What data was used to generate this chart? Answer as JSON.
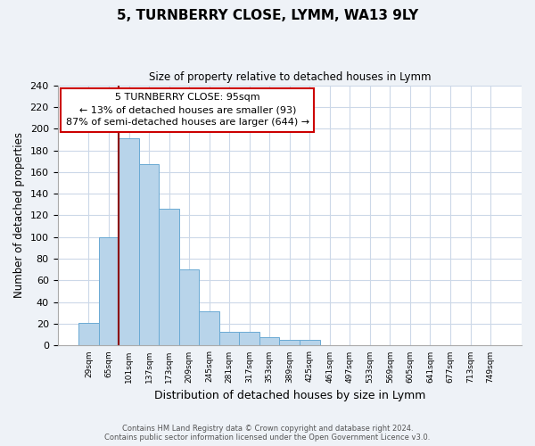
{
  "title": "5, TURNBERRY CLOSE, LYMM, WA13 9LY",
  "subtitle": "Size of property relative to detached houses in Lymm",
  "xlabel": "Distribution of detached houses by size in Lymm",
  "ylabel": "Number of detached properties",
  "bin_labels": [
    "29sqm",
    "65sqm",
    "101sqm",
    "137sqm",
    "173sqm",
    "209sqm",
    "245sqm",
    "281sqm",
    "317sqm",
    "353sqm",
    "389sqm",
    "425sqm",
    "461sqm",
    "497sqm",
    "533sqm",
    "569sqm",
    "605sqm",
    "641sqm",
    "677sqm",
    "713sqm",
    "749sqm"
  ],
  "bar_heights": [
    21,
    100,
    191,
    167,
    126,
    70,
    32,
    13,
    13,
    8,
    5,
    5,
    0,
    0,
    0,
    0,
    0,
    0,
    0,
    0,
    0
  ],
  "bar_color": "#b8d4ea",
  "bar_edge_color": "#6aaad4",
  "highlight_line_color": "#8b0000",
  "box_text_line1": "5 TURNBERRY CLOSE: 95sqm",
  "box_text_line2": "← 13% of detached houses are smaller (93)",
  "box_text_line3": "87% of semi-detached houses are larger (644) →",
  "box_color": "#ffffff",
  "box_edge_color": "#cc0000",
  "ylim": [
    0,
    240
  ],
  "yticks": [
    0,
    20,
    40,
    60,
    80,
    100,
    120,
    140,
    160,
    180,
    200,
    220,
    240
  ],
  "footer_line1": "Contains HM Land Registry data © Crown copyright and database right 2024.",
  "footer_line2": "Contains public sector information licensed under the Open Government Licence v3.0.",
  "bg_color": "#eef2f7",
  "plot_bg_color": "#ffffff",
  "grid_color": "#ccd8e8"
}
